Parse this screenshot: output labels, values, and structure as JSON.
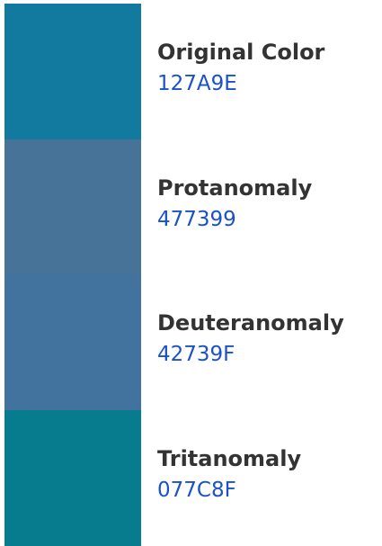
{
  "swatches": [
    {
      "name": "Original Color",
      "hex": "127A9E"
    },
    {
      "name": "Protanomaly",
      "hex": "477399"
    },
    {
      "name": "Deuteranomaly",
      "hex": "42739F"
    },
    {
      "name": "Tritanomaly",
      "hex": "077C8F"
    }
  ]
}
